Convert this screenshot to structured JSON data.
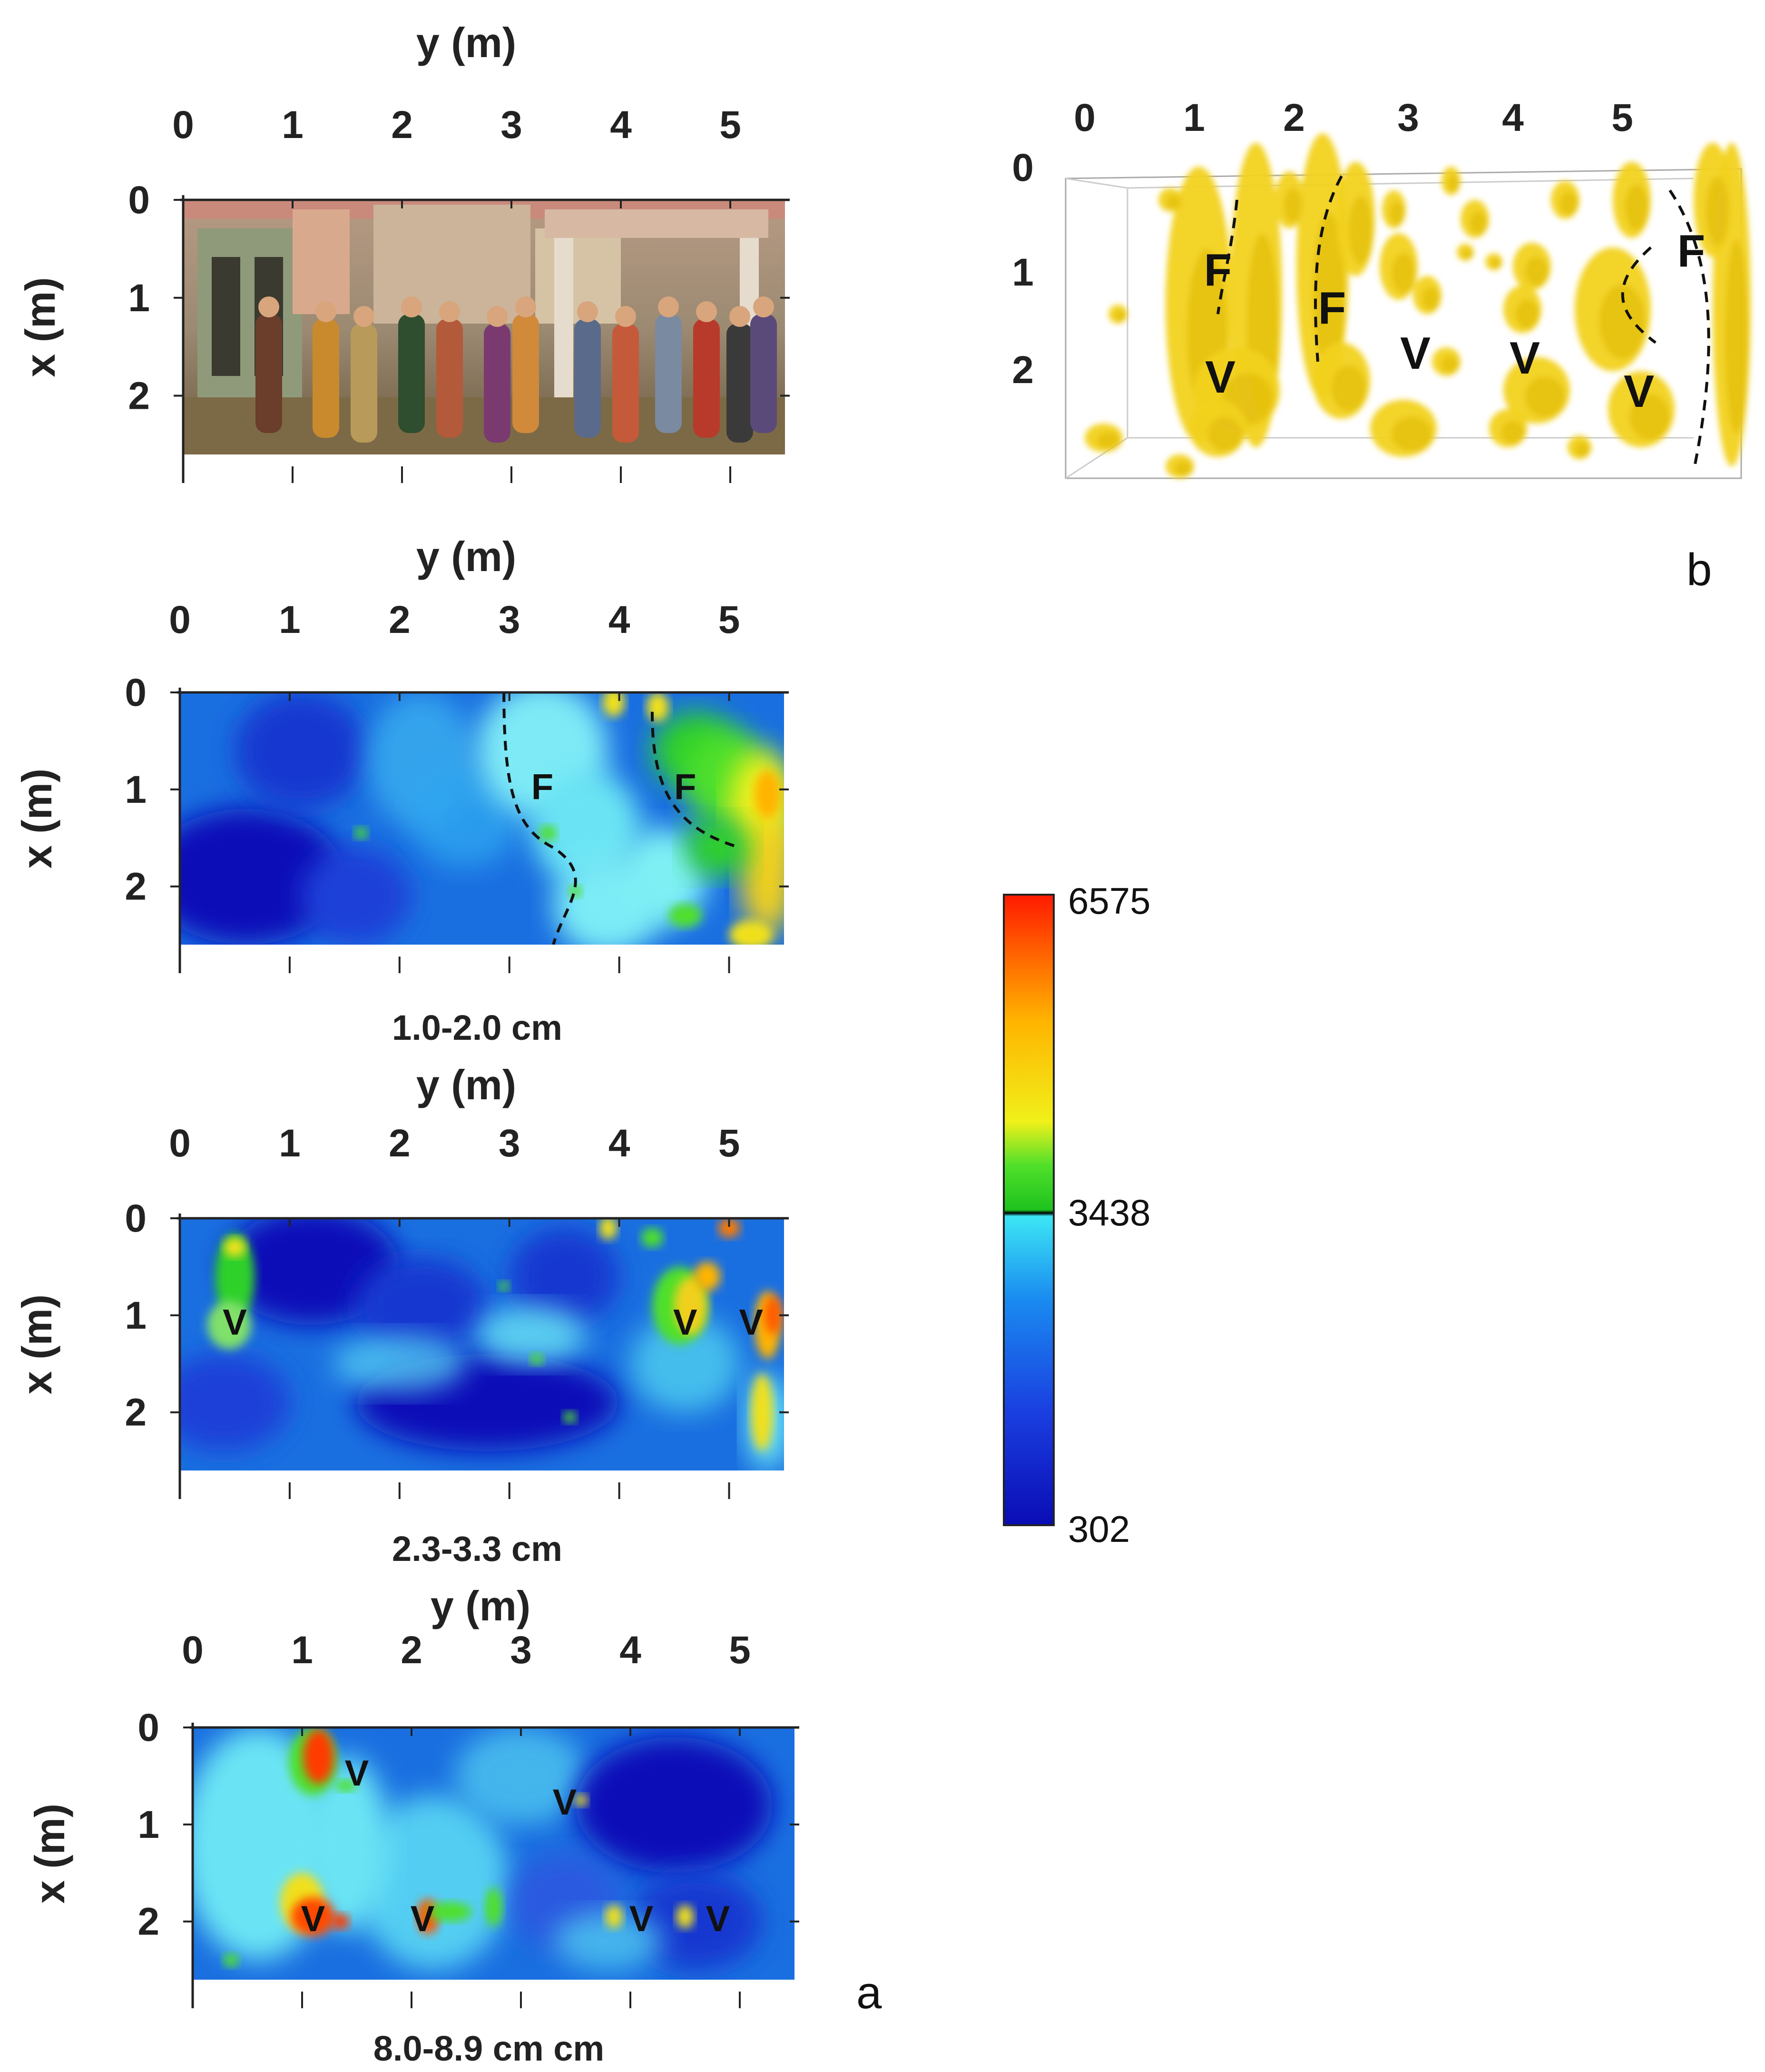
{
  "chart_data": [
    {
      "type": "image",
      "panel": "a-1",
      "description_label": "fresco photograph",
      "xlabel": "y (m)",
      "ylabel": "x (m)",
      "xticks": [
        "0",
        "1",
        "2",
        "3",
        "4",
        "5"
      ],
      "yticks": [
        "0",
        "1",
        "2"
      ],
      "xlim": [
        0,
        5.5
      ],
      "ylim": [
        0,
        2.6
      ]
    },
    {
      "type": "heatmap",
      "panel": "a-2",
      "xlabel": "y (m)",
      "ylabel": "x (m)",
      "xticks": [
        "0",
        "1",
        "2",
        "3",
        "4",
        "5"
      ],
      "yticks": [
        "0",
        "1",
        "2"
      ],
      "xlim": [
        0,
        5.5
      ],
      "ylim": [
        0,
        2.6
      ],
      "caption": "1.0-2.0 cm",
      "annotations": [
        {
          "text": "F",
          "y": 3.3,
          "x": 1.0
        },
        {
          "text": "F",
          "y": 4.6,
          "x": 1.0
        }
      ]
    },
    {
      "type": "heatmap",
      "panel": "a-3",
      "xlabel": "y (m)",
      "ylabel": "x (m)",
      "xticks": [
        "0",
        "1",
        "2",
        "3",
        "4",
        "5"
      ],
      "yticks": [
        "0",
        "1",
        "2"
      ],
      "xlim": [
        0,
        5.5
      ],
      "ylim": [
        0,
        2.6
      ],
      "caption": "2.3-3.3 cm",
      "annotations": [
        {
          "text": "V",
          "y": 0.5,
          "x": 1.1
        },
        {
          "text": "V",
          "y": 4.6,
          "x": 1.1
        },
        {
          "text": "V",
          "y": 5.2,
          "x": 1.1
        }
      ]
    },
    {
      "type": "heatmap",
      "panel": "a-4",
      "xlabel": "y (m)",
      "ylabel": "x (m)",
      "xticks": [
        "0",
        "1",
        "2",
        "3",
        "4",
        "5"
      ],
      "yticks": [
        "0",
        "1",
        "2"
      ],
      "xlim": [
        0,
        5.5
      ],
      "ylim": [
        0,
        2.6
      ],
      "caption": "8.0-8.9 cm cm",
      "annotations": [
        {
          "text": "V",
          "y": 1.5,
          "x": 0.5
        },
        {
          "text": "V",
          "y": 3.4,
          "x": 0.8
        },
        {
          "text": "V",
          "y": 1.1,
          "x": 2.0
        },
        {
          "text": "V",
          "y": 2.1,
          "x": 2.0
        },
        {
          "text": "V",
          "y": 4.1,
          "x": 2.0
        },
        {
          "text": "V",
          "y": 4.8,
          "x": 2.0
        }
      ]
    },
    {
      "type": "isosurface-3d",
      "panel": "b",
      "xticks": [
        "0",
        "1",
        "2",
        "3",
        "4",
        "5"
      ],
      "yticks": [
        "0",
        "1",
        "2"
      ],
      "annotations": [
        "F",
        "F",
        "F",
        "V",
        "V",
        "V",
        "V"
      ]
    }
  ],
  "colorbar": {
    "max": "6575",
    "mid": "3438",
    "min": "302"
  },
  "panel_labels": {
    "a": "a",
    "b": "b"
  }
}
